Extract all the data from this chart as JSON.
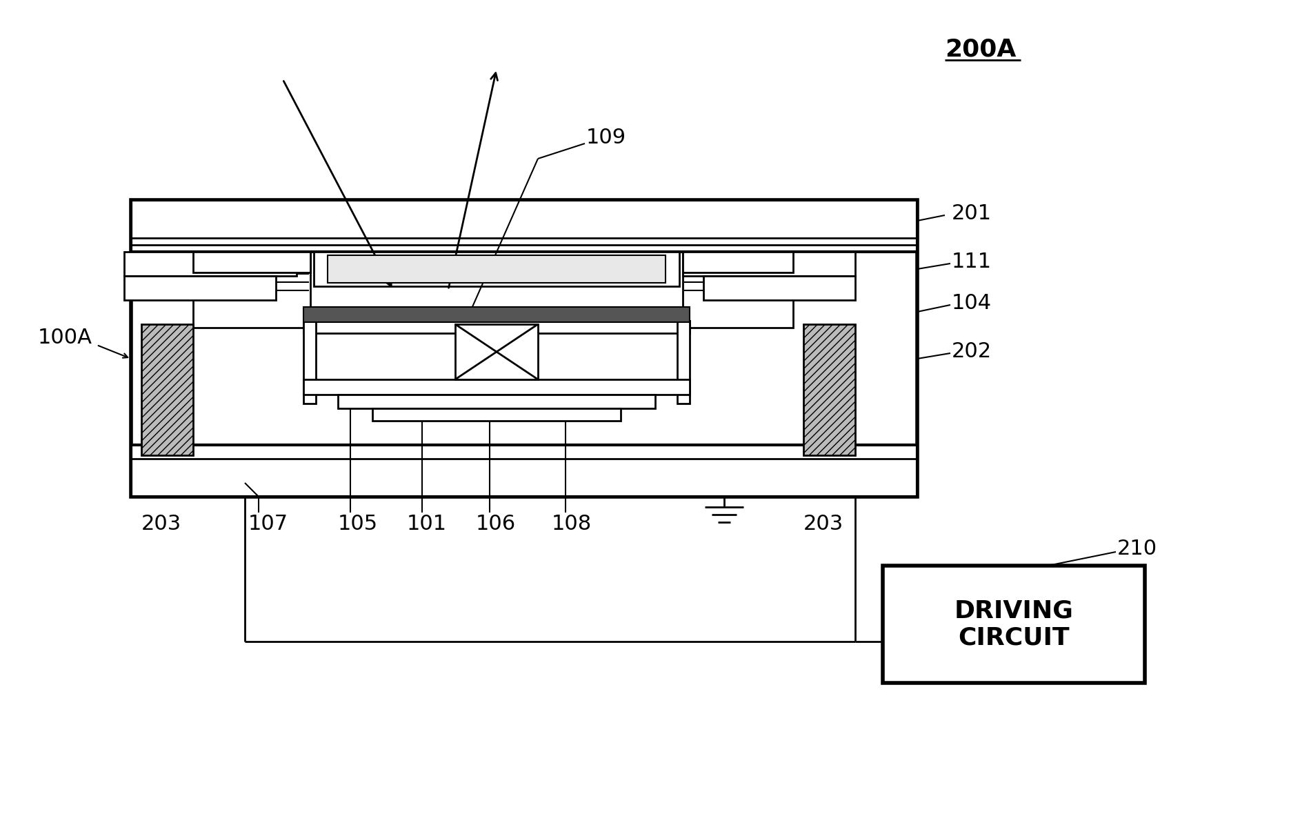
{
  "bg_color": "#ffffff",
  "lc": "#000000",
  "label_200A": "200A",
  "label_100A": "100A",
  "label_101": "101",
  "label_104": "104",
  "label_105": "105",
  "label_106": "106",
  "label_107": "107",
  "label_108": "108",
  "label_109": "109",
  "label_111": "111",
  "label_201": "201",
  "label_202": "202",
  "label_203": "203",
  "label_210": "210",
  "driving_circuit": "DRIVING\nCIRCUIT",
  "hatch_color": "#999999",
  "mirror_dark": "#555555"
}
